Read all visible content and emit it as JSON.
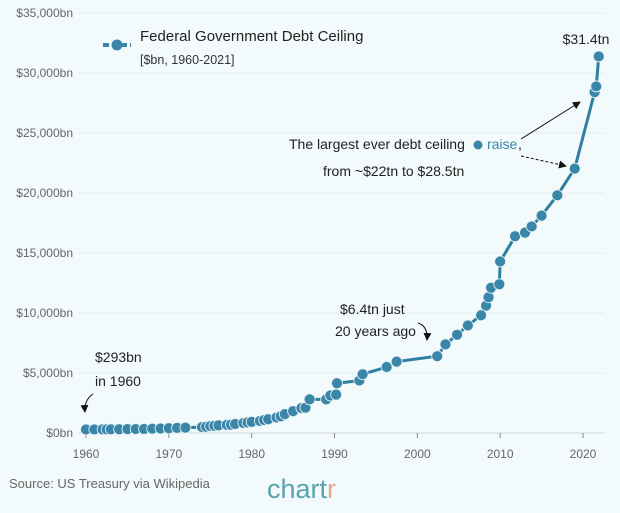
{
  "chart_data": {
    "type": "line",
    "title": "Federal Government Debt Ceiling",
    "subtitle": "[$bn, 1960-2021]",
    "xlabel": "",
    "ylabel": "",
    "xlim": [
      1960,
      2021
    ],
    "ylim": [
      0,
      35000
    ],
    "grid": true,
    "legend_position": "top-left",
    "x_ticks": [
      "1960",
      "1970",
      "1980",
      "1990",
      "2000",
      "2010",
      "2020"
    ],
    "y_ticks": [
      "$0bn",
      "$5,000bn",
      "$10,000bn",
      "$15,000bn",
      "$20,000bn",
      "$25,000bn",
      "$30,000bn",
      "$35,000bn"
    ],
    "series": [
      {
        "color": "#2f7fa3",
        "x": [
          1960,
          1961,
          1962,
          1962.5,
          1963,
          1964,
          1965,
          1966,
          1967,
          1968,
          1969,
          1970,
          1971,
          1972,
          1974,
          1974.5,
          1975,
          1975.5,
          1976,
          1977,
          1977.5,
          1978,
          1979,
          1979.5,
          1980,
          1981,
          1981.5,
          1982,
          1983,
          1983.5,
          1984,
          1985,
          1986,
          1986.5,
          1987,
          1989,
          1989.5,
          1990.2,
          1990.3,
          1993,
          1993.4,
          1996.3,
          1997.5,
          2002.4,
          2003.4,
          2004.8,
          2006.1,
          2007.7,
          2008.3,
          2008.6,
          2008.9,
          2009.9,
          2010,
          2011.8,
          2013,
          2013.8,
          2015,
          2016.9,
          2019,
          2021.4,
          2021.6,
          2021.9
        ],
        "y": [
          293,
          298,
          300,
          305,
          308,
          315,
          324,
          328,
          336,
          358,
          377,
          395,
          430,
          450,
          495,
          520,
          577,
          600,
          636,
          682,
          700,
          752,
          830,
          879,
          925,
          999,
          1080,
          1143,
          1290,
          1389,
          1573,
          1824,
          2078,
          2111,
          2800,
          2800,
          3123,
          3195,
          4145,
          4370,
          4900,
          5500,
          5950,
          6400,
          7384,
          8184,
          8965,
          9815,
          10615,
          11315,
          12104,
          12394,
          14294,
          16394,
          16699,
          17212,
          18113,
          19808,
          22030,
          28401,
          28881,
          31381
        ]
      }
    ],
    "annotations": {
      "start": [
        "$293bn",
        "in 1960"
      ],
      "mid": [
        "$6.4tn just",
        "20 years ago"
      ],
      "raise_line1": "The largest ever debt ceiling",
      "raise_word": "raise",
      "raise_comma": ",",
      "raise_line2": "from ~$22tn to $28.5tn",
      "end": "$31.4tn"
    }
  },
  "footer": {
    "source": "Source: US Treasury via Wikipedia",
    "logo": "chartr"
  },
  "colors": {
    "background": "#f2fafc",
    "series": "#2f7fa3",
    "logo_main": "#5aa2b0",
    "logo_accent": "#e0a890"
  }
}
